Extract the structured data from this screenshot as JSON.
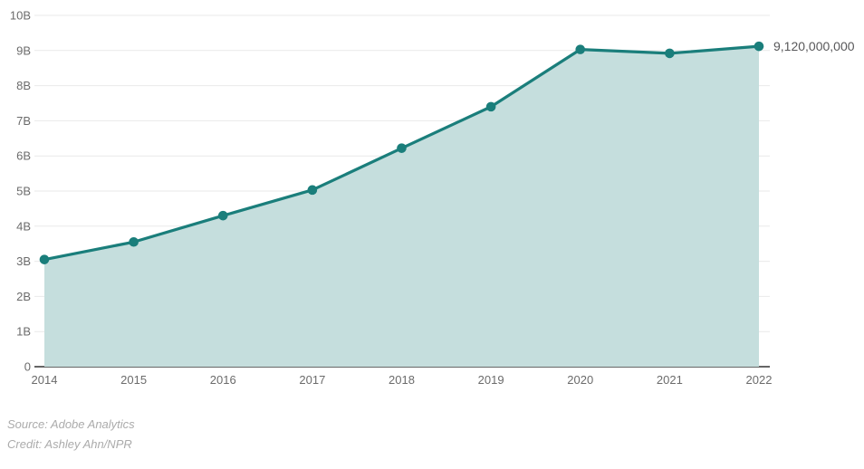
{
  "chart_data": {
    "type": "area",
    "x": [
      "2014",
      "2015",
      "2016",
      "2017",
      "2018",
      "2019",
      "2020",
      "2021",
      "2022"
    ],
    "values": [
      3.05,
      3.55,
      4.3,
      5.03,
      6.22,
      7.4,
      9.03,
      8.92,
      9.12
    ],
    "unit": "billions",
    "ylim": [
      0,
      10
    ],
    "y_tick_interval": 1,
    "y_tick_labels": [
      "0",
      "1B",
      "2B",
      "3B",
      "4B",
      "5B",
      "6B",
      "7B",
      "8B",
      "9B",
      "10B"
    ],
    "grid": "horizontal",
    "legend": "none",
    "title": "",
    "xlabel": "",
    "ylabel": "",
    "end_annotation": {
      "x": "2022",
      "value": 9.12,
      "label": "9,120,000,000"
    },
    "colors": {
      "line": "#1a7e7b",
      "marker": "#1a7e7b",
      "fill": "#c5dedd",
      "grid": "#e9e9e9",
      "baseline_axis": "#333333",
      "tick_text": "#6b6b6b",
      "annotation_text": "#58585a",
      "footer_text": "#ababab",
      "background": "#ffffff"
    }
  },
  "footer": {
    "source": "Source: Adobe Analytics",
    "credit": "Credit: Ashley Ahn/NPR"
  }
}
